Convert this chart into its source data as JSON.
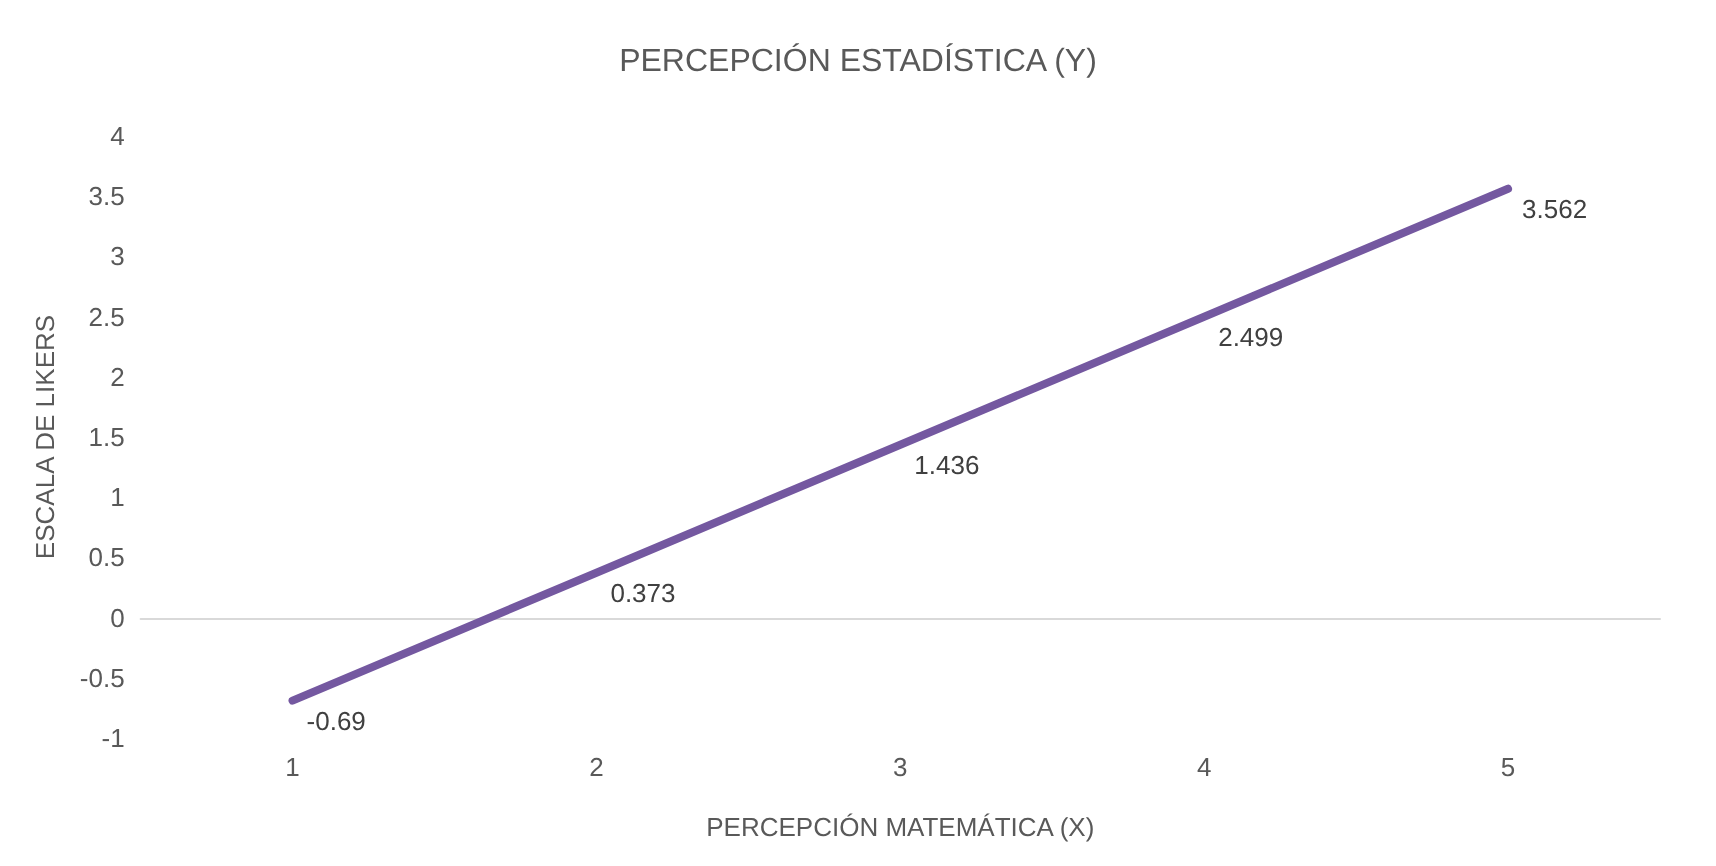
{
  "chart_data": {
    "type": "line",
    "title": "PERCEPCIÓN ESTADÍSTICA (Y)",
    "xlabel": "PERCEPCIÓN MATEMÁTICA (X)",
    "ylabel": "ESCALA DE LIKERS",
    "categories": [
      "1",
      "2",
      "3",
      "4",
      "5"
    ],
    "series": [
      {
        "color": "#7458a0",
        "values": [
          -0.69,
          0.373,
          1.436,
          2.499,
          3.562
        ]
      }
    ],
    "ylim": [
      -1,
      4
    ],
    "yticks": [
      -1,
      -0.5,
      0,
      0.5,
      1,
      1.5,
      2,
      2.5,
      3,
      3.5,
      4
    ],
    "marker": "none",
    "line_style": "solid",
    "data_labels": true
  }
}
